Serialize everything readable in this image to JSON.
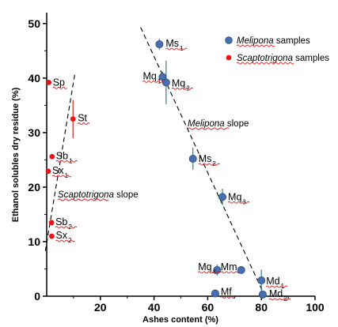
{
  "chart_data": {
    "type": "scatter",
    "xlabel": "Ashes content (%)",
    "ylabel": "Ethanol solubles dry residue (%)",
    "xlim": [
      0,
      100
    ],
    "ylim": [
      0,
      52
    ],
    "x_ticks": [
      "20",
      "40",
      "60",
      "80",
      "100"
    ],
    "y_ticks": [
      "0",
      "10",
      "20",
      "30",
      "40",
      "50"
    ],
    "grid": false,
    "legend_position": "top-right",
    "series": [
      {
        "name": "Melipona samples",
        "color": "#4a6fae",
        "marker": "circle",
        "points": [
          {
            "label": "Ms",
            "sub": "1",
            "x": 42.0,
            "y": 46.2,
            "yerr": 1.0
          },
          {
            "label": "Mq",
            "sub": "1",
            "x": 43.2,
            "y": 40.2,
            "yerr": 1.0
          },
          {
            "label": "Mq",
            "sub": "2",
            "x": 44.5,
            "y": 39.2,
            "yerr": 4.0
          },
          {
            "label": "Ms",
            "sub": "2",
            "x": 54.5,
            "y": 25.2,
            "yerr": 2.0
          },
          {
            "label": "Mq",
            "sub": "3",
            "x": 65.5,
            "y": 18.2,
            "yerr": 1.5
          },
          {
            "label": "Mq",
            "sub": "4",
            "x": 63.5,
            "y": 4.8,
            "yerr": 1.0
          },
          {
            "label": "Mm",
            "sub": "",
            "x": 72.5,
            "y": 4.8,
            "yerr": 0.5
          },
          {
            "label": "Md",
            "sub": "1",
            "x": 80.0,
            "y": 2.9,
            "yerr": 2.0
          },
          {
            "label": "Md",
            "sub": "2",
            "x": 80.5,
            "y": 0.3,
            "yerr": 0.0
          },
          {
            "label": "Mf",
            "sub": "",
            "x": 62.8,
            "y": 0.5,
            "yerr": 0.0
          }
        ]
      },
      {
        "name": "Scaptotrigona samples",
        "color": "#e8141a",
        "marker": "circle",
        "points": [
          {
            "label": "Sp",
            "sub": "",
            "x": 0.8,
            "y": 39.2,
            "yerr": 0.0
          },
          {
            "label": "St",
            "sub": "",
            "x": 9.8,
            "y": 32.5,
            "yerr": 3.5
          },
          {
            "label": "Sb",
            "sub": "1",
            "x": 2.0,
            "y": 25.6,
            "yerr": 0.0
          },
          {
            "label": "Sx",
            "sub": "1",
            "x": 0.6,
            "y": 22.9,
            "yerr": 0.0
          },
          {
            "label": "Sb",
            "sub": "2",
            "x": 1.8,
            "y": 13.5,
            "yerr": 0.0
          },
          {
            "label": "Sx",
            "sub": "2",
            "x": 1.9,
            "y": 11.0,
            "yerr": 0.0
          }
        ]
      }
    ],
    "slopes": [
      {
        "name": "Melipona slope",
        "from": [
          35,
          49.3
        ],
        "to": [
          81,
          0.3
        ]
      },
      {
        "name": "Scaptotrigona slope",
        "from": [
          -0.5,
          8.3
        ],
        "to": [
          10.5,
          40.8
        ]
      }
    ],
    "annotations": {
      "melipona_slope": {
        "italic": "Melipona",
        "rest": " slope"
      },
      "scaptotrigona_slope": {
        "italic": "Scaptotrigona",
        "rest": " slope"
      }
    },
    "legend": [
      {
        "italic": "Melipona",
        "rest": " samples",
        "color": "#4a6fae"
      },
      {
        "italic": "Scaptotrigona",
        "rest": " samples",
        "color": "#e8141a"
      }
    ]
  }
}
